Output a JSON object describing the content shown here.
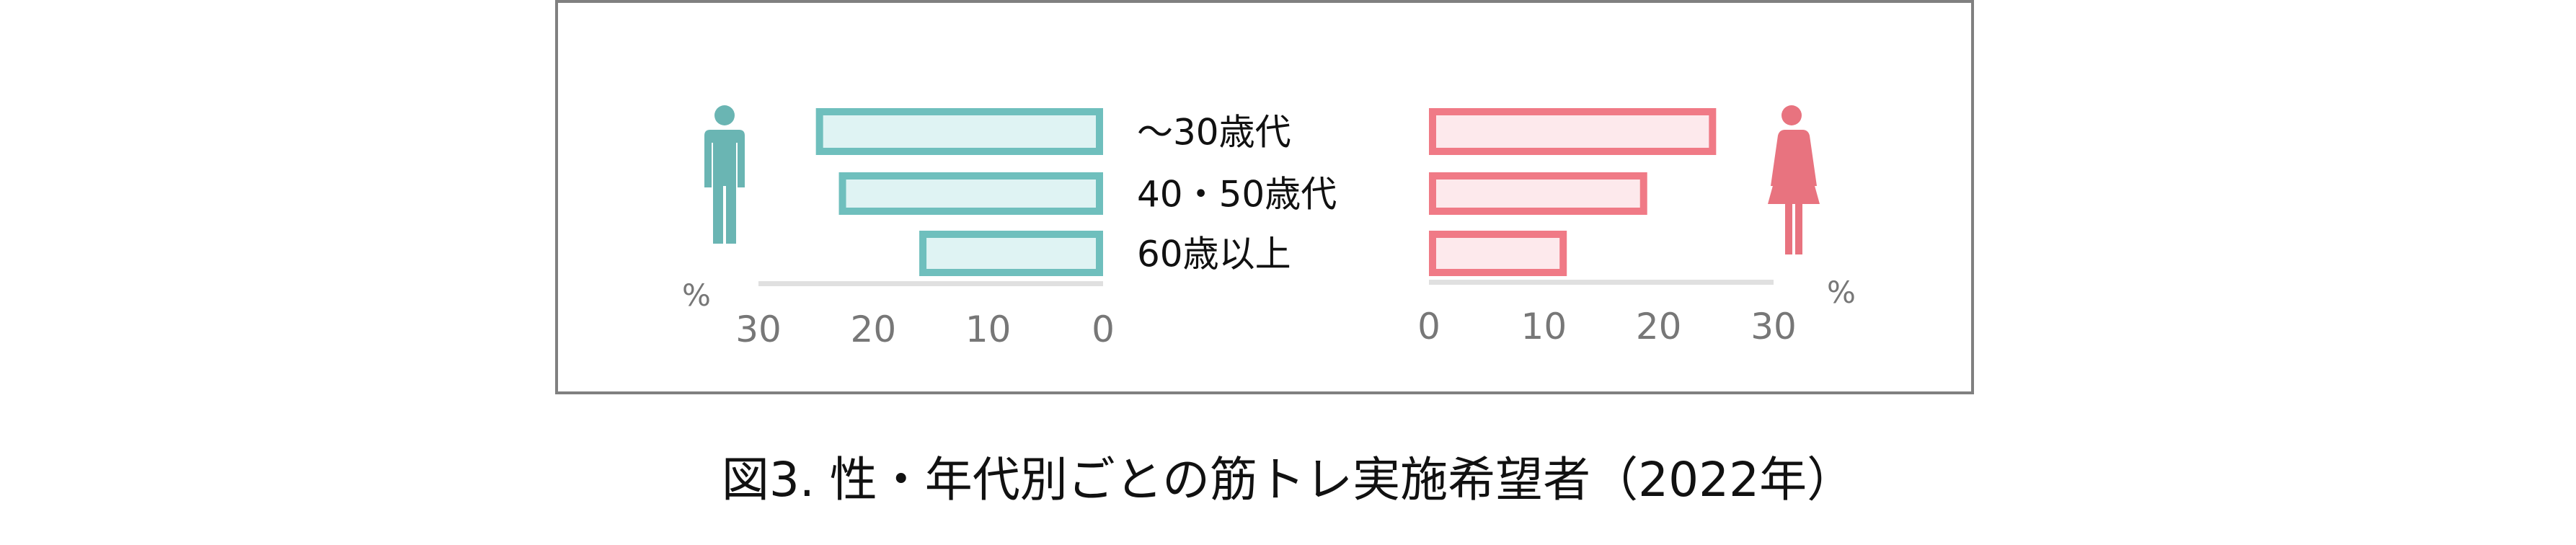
{
  "chart_data": {
    "type": "bar",
    "orientation": "horizontal-butterfly",
    "categories": [
      "～30歳代",
      "40・50歳代",
      "60歳以上"
    ],
    "series": [
      {
        "side": "left",
        "icon": "male-icon",
        "values": [
          25,
          23,
          16
        ],
        "color": "#6fbfbd",
        "fill": "#dff3f3"
      },
      {
        "side": "right",
        "icon": "female-icon",
        "values": [
          25,
          19,
          12
        ],
        "color": "#f07a86",
        "fill": "#fde9ec"
      }
    ],
    "xlim": [
      0,
      30
    ],
    "left_ticks": [
      "30",
      "20",
      "10",
      "0"
    ],
    "right_ticks": [
      "0",
      "10",
      "20",
      "30"
    ],
    "unit_left": "%",
    "unit_right": "%",
    "grid": false
  },
  "caption": "図3. 性・年代別ごとの筋トレ実施希望者（2022年）"
}
